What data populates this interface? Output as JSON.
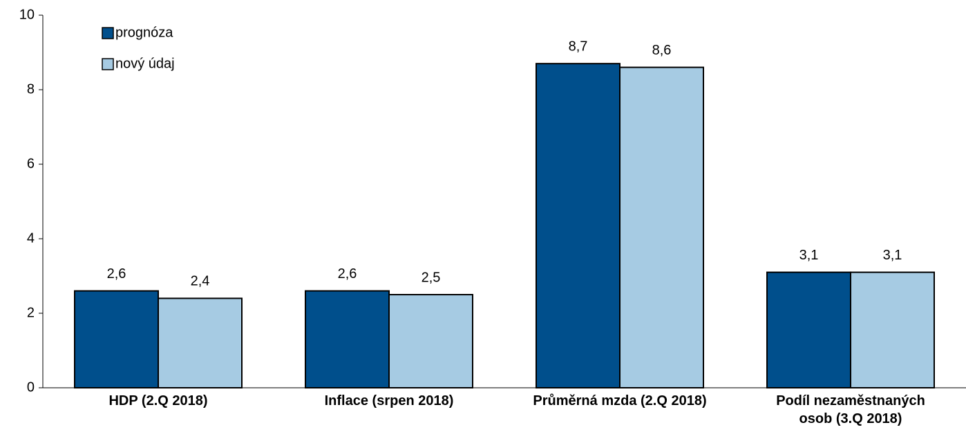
{
  "chart_data": {
    "type": "bar",
    "categories": [
      "HDP (2.Q 2018)",
      "Inflace (srpen 2018)",
      "Průměrná mzda (2.Q 2018)",
      "Podíl nezaměstnaných\nosob (3.Q 2018)"
    ],
    "series": [
      {
        "name": "prognóza",
        "color": "#004f8c",
        "values": [
          2.6,
          2.6,
          8.7,
          3.1
        ],
        "value_labels": [
          "2,6",
          "2,6",
          "8,7",
          "3,1"
        ]
      },
      {
        "name": "nový údaj",
        "color": "#a6cbe3",
        "values": [
          2.4,
          2.5,
          8.6,
          3.1
        ],
        "value_labels": [
          "2,4",
          "2,5",
          "8,6",
          "3,1"
        ]
      }
    ],
    "ylim": [
      0,
      10
    ],
    "yticks": [
      0,
      2,
      4,
      6,
      8,
      10
    ],
    "grid": false,
    "legend": "top-left"
  }
}
